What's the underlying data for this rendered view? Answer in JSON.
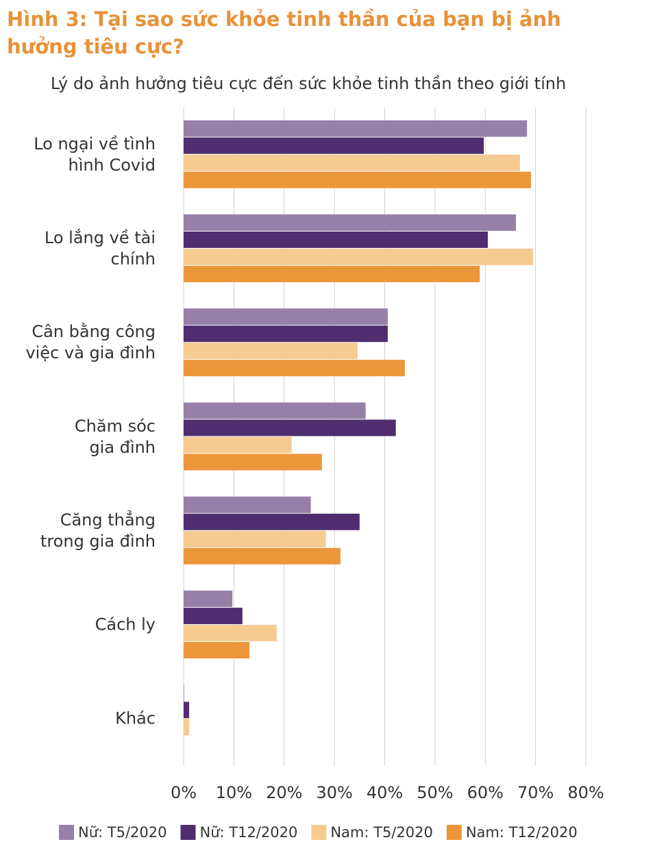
{
  "chart_data": {
    "type": "bar",
    "orientation": "horizontal",
    "title": "Hình 3: Tại sao sức khỏe tinh  thần của bạn bị ảnh hưởng tiêu cực?",
    "subtitle": "Lý do ảnh hưởng tiêu cực đến sức khỏe tinh thần theo giới tính",
    "categories": [
      "Lo ngại về tình\nhình Covid",
      "Lo lắng về tài\nchính",
      "Cân bằng công\nviệc và gia đình",
      "Chăm sóc\ngia đình",
      "Căng thẳng\ntrong gia đình",
      "Cách ly",
      "Khác"
    ],
    "series": [
      {
        "name": "Nữ: T5/2020",
        "color": "#9680a8",
        "values": [
          68.3,
          66.1,
          40.6,
          36.2,
          25.3,
          9.7,
          0.1
        ]
      },
      {
        "name": "Nữ: T12/2020",
        "color": "#4f2d6e",
        "values": [
          59.7,
          60.5,
          40.6,
          42.2,
          35.0,
          11.7,
          1.1
        ]
      },
      {
        "name": "Nam: T5/2020",
        "color": "#f6cb92",
        "values": [
          66.9,
          69.5,
          34.6,
          21.5,
          28.3,
          18.5,
          1.1
        ]
      },
      {
        "name": "Nam: T12/2020",
        "color": "#ec963a",
        "values": [
          69.1,
          58.9,
          44.0,
          27.5,
          31.2,
          13.1,
          0
        ]
      }
    ],
    "xlim": [
      0,
      80
    ],
    "xticks": [
      {
        "value": 0,
        "label": "0%"
      },
      {
        "value": 10,
        "label": "10%"
      },
      {
        "value": 20,
        "label": "20%"
      },
      {
        "value": 30,
        "label": "30%"
      },
      {
        "value": 40,
        "label": "40%"
      },
      {
        "value": 50,
        "label": "50%"
      },
      {
        "value": 60,
        "label": "60%"
      },
      {
        "value": 70,
        "label": "70%"
      },
      {
        "value": 80,
        "label": "80%"
      }
    ],
    "grid": true,
    "legend": "bottom"
  }
}
